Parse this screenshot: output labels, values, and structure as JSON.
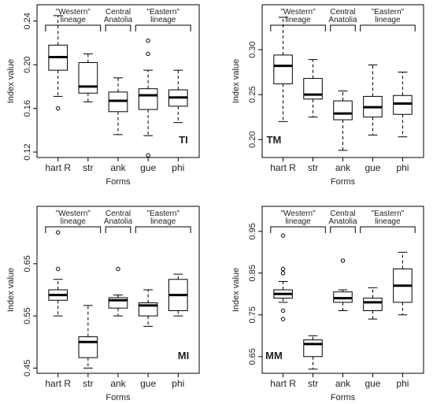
{
  "chart_data": [
    {
      "type": "boxplot",
      "panel_label": "TI",
      "xlabel": "Forms",
      "ylabel": "Index value",
      "categories": [
        "hart R",
        "str",
        "ank",
        "gue",
        "phi"
      ],
      "ylim": [
        0.115,
        0.255
      ],
      "yticks": [
        {
          "value": 0.12,
          "label": "0.12"
        },
        {
          "value": 0.16,
          "label": "0.16"
        },
        {
          "value": 0.2,
          "label": "0.20"
        },
        {
          "value": 0.24,
          "label": "0.24"
        }
      ],
      "groups": [
        {
          "label": "\"Western\" lineage",
          "from": 0,
          "to": 1
        },
        {
          "label": "Central Anatolia",
          "from": 2,
          "to": 2
        },
        {
          "label": "\"Eastern\" lineage",
          "from": 3,
          "to": 4
        }
      ],
      "boxes": [
        {
          "min": 0.171,
          "q1": 0.195,
          "median": 0.207,
          "q3": 0.218,
          "max": 0.245,
          "outliers": [
            0.16
          ]
        },
        {
          "min": 0.166,
          "q1": 0.174,
          "median": 0.18,
          "q3": 0.202,
          "max": 0.21,
          "outliers": []
        },
        {
          "min": 0.136,
          "q1": 0.157,
          "median": 0.167,
          "q3": 0.175,
          "max": 0.188,
          "outliers": []
        },
        {
          "min": 0.135,
          "q1": 0.159,
          "median": 0.172,
          "q3": 0.178,
          "max": 0.195,
          "outliers": [
            0.222,
            0.21,
            0.117
          ]
        },
        {
          "min": 0.147,
          "q1": 0.162,
          "median": 0.17,
          "q3": 0.177,
          "max": 0.195,
          "outliers": []
        }
      ]
    },
    {
      "type": "boxplot",
      "panel_label": "TM",
      "xlabel": "Forms",
      "ylabel": "Index value",
      "categories": [
        "hart R",
        "str",
        "ank",
        "gue",
        "phi"
      ],
      "ylim": [
        0.18,
        0.35
      ],
      "yticks": [
        {
          "value": 0.2,
          "label": "0.20"
        },
        {
          "value": 0.25,
          "label": "0.25"
        },
        {
          "value": 0.3,
          "label": "0.30"
        }
      ],
      "groups": [
        {
          "label": "\"Western\" lineage",
          "from": 0,
          "to": 1
        },
        {
          "label": "Central Anatolia",
          "from": 2,
          "to": 2
        },
        {
          "label": "\"Eastern\" lineage",
          "from": 3,
          "to": 4
        }
      ],
      "boxes": [
        {
          "min": 0.22,
          "q1": 0.262,
          "median": 0.282,
          "q3": 0.294,
          "max": 0.336,
          "outliers": []
        },
        {
          "min": 0.225,
          "q1": 0.245,
          "median": 0.25,
          "q3": 0.268,
          "max": 0.289,
          "outliers": []
        },
        {
          "min": 0.188,
          "q1": 0.222,
          "median": 0.229,
          "q3": 0.243,
          "max": 0.254,
          "outliers": []
        },
        {
          "min": 0.205,
          "q1": 0.225,
          "median": 0.236,
          "q3": 0.248,
          "max": 0.283,
          "outliers": []
        },
        {
          "min": 0.203,
          "q1": 0.228,
          "median": 0.24,
          "q3": 0.249,
          "max": 0.275,
          "outliers": []
        }
      ]
    },
    {
      "type": "boxplot",
      "panel_label": "MI",
      "xlabel": "Forms",
      "ylabel": "Index value",
      "categories": [
        "hart R",
        "str",
        "ank",
        "gue",
        "phi"
      ],
      "ylim": [
        0.44,
        0.76
      ],
      "yticks": [
        {
          "value": 0.45,
          "label": "0.45"
        },
        {
          "value": 0.55,
          "label": "0.55"
        },
        {
          "value": 0.65,
          "label": "0.65"
        }
      ],
      "groups": [
        {
          "label": "\"Western\" lineage",
          "from": 0,
          "to": 1
        },
        {
          "label": "Central Anatolia",
          "from": 2,
          "to": 2
        },
        {
          "label": "\"Eastern\" lineage",
          "from": 3,
          "to": 4
        }
      ],
      "boxes": [
        {
          "min": 0.55,
          "q1": 0.58,
          "median": 0.59,
          "q3": 0.6,
          "max": 0.62,
          "outliers": [
            0.71,
            0.64
          ]
        },
        {
          "min": 0.45,
          "q1": 0.47,
          "median": 0.5,
          "q3": 0.51,
          "max": 0.57,
          "outliers": []
        },
        {
          "min": 0.55,
          "q1": 0.565,
          "median": 0.58,
          "q3": 0.585,
          "max": 0.59,
          "outliers": [
            0.64
          ]
        },
        {
          "min": 0.53,
          "q1": 0.55,
          "median": 0.57,
          "q3": 0.575,
          "max": 0.6,
          "outliers": []
        },
        {
          "min": 0.55,
          "q1": 0.56,
          "median": 0.59,
          "q3": 0.62,
          "max": 0.63,
          "outliers": []
        }
      ]
    },
    {
      "type": "boxplot",
      "panel_label": "MM",
      "xlabel": "Forms",
      "ylabel": "Index value",
      "categories": [
        "hart R",
        "str",
        "ank",
        "gue",
        "phi"
      ],
      "ylim": [
        0.61,
        1.01
      ],
      "yticks": [
        {
          "value": 0.65,
          "label": "0.65"
        },
        {
          "value": 0.75,
          "label": "0.75"
        },
        {
          "value": 0.85,
          "label": "0.85"
        },
        {
          "value": 0.95,
          "label": "0.95"
        }
      ],
      "groups": [
        {
          "label": "\"Western\" lineage",
          "from": 0,
          "to": 1
        },
        {
          "label": "Central Anatolia",
          "from": 2,
          "to": 2
        },
        {
          "label": "\"Eastern\" lineage",
          "from": 3,
          "to": 4
        }
      ],
      "boxes": [
        {
          "min": 0.78,
          "q1": 0.79,
          "median": 0.8,
          "q3": 0.81,
          "max": 0.83,
          "outliers": [
            0.94,
            0.86,
            0.85,
            0.76,
            0.74
          ]
        },
        {
          "min": 0.62,
          "q1": 0.65,
          "median": 0.68,
          "q3": 0.69,
          "max": 0.7,
          "outliers": []
        },
        {
          "min": 0.76,
          "q1": 0.78,
          "median": 0.79,
          "q3": 0.805,
          "max": 0.81,
          "outliers": [
            0.88
          ]
        },
        {
          "min": 0.74,
          "q1": 0.76,
          "median": 0.78,
          "q3": 0.79,
          "max": 0.815,
          "outliers": []
        },
        {
          "min": 0.75,
          "q1": 0.78,
          "median": 0.82,
          "q3": 0.86,
          "max": 0.9,
          "outliers": []
        }
      ]
    }
  ]
}
